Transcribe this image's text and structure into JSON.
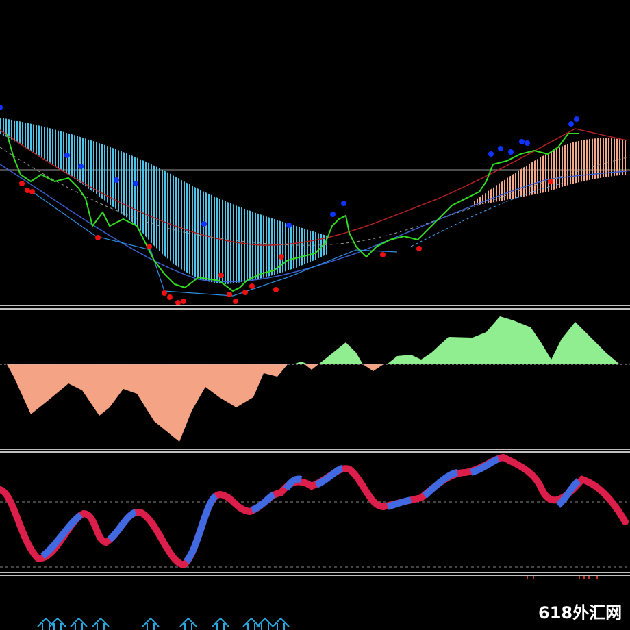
{
  "watermark": "618外汇网"
}
